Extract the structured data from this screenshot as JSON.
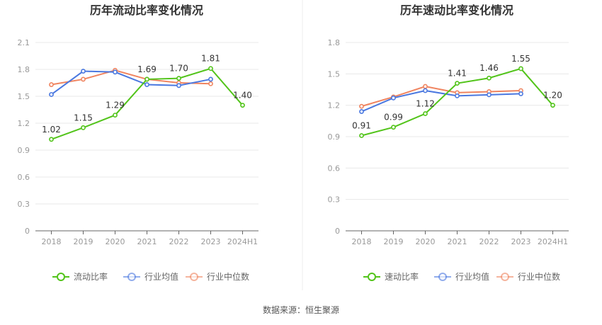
{
  "source_label": "数据来源：恒生聚源",
  "colors": {
    "main": "#52c41a",
    "avg": "#4a78e0",
    "median": "#f0845f",
    "grid": "#e8e8e8",
    "axis": "#666666"
  },
  "chart_data": [
    {
      "type": "line",
      "title": "历年流动比率变化情况",
      "categories": [
        "2018",
        "2019",
        "2020",
        "2021",
        "2022",
        "2023",
        "2024H1"
      ],
      "ylim": [
        0,
        2.1
      ],
      "yticks": [
        "0",
        "0.3",
        "0.6",
        "0.9",
        "1.2",
        "1.5",
        "1.8",
        "2.1"
      ],
      "grid": true,
      "legend_position": "bottom",
      "series": [
        {
          "name": "流动比率",
          "values": [
            1.02,
            1.15,
            1.29,
            1.69,
            1.7,
            1.81,
            1.4
          ],
          "labels": [
            "1.02",
            "1.15",
            "1.29",
            "1.69",
            "1.70",
            "1.81",
            "1.40"
          ]
        },
        {
          "name": "行业均值",
          "values": [
            1.52,
            1.78,
            1.77,
            1.63,
            1.62,
            1.69,
            null
          ]
        },
        {
          "name": "行业中位数",
          "values": [
            1.63,
            1.69,
            1.79,
            1.69,
            1.65,
            1.64,
            null
          ]
        }
      ]
    },
    {
      "type": "line",
      "title": "历年速动比率变化情况",
      "categories": [
        "2018",
        "2019",
        "2020",
        "2021",
        "2022",
        "2023",
        "2024H1"
      ],
      "ylim": [
        0,
        1.8
      ],
      "yticks": [
        "0",
        "0.3",
        "0.6",
        "0.9",
        "1.2",
        "1.5",
        "1.8"
      ],
      "grid": true,
      "legend_position": "bottom",
      "series": [
        {
          "name": "速动比率",
          "values": [
            0.91,
            0.99,
            1.12,
            1.41,
            1.46,
            1.55,
            1.2
          ],
          "labels": [
            "0.91",
            "0.99",
            "1.12",
            "1.41",
            "1.46",
            "1.55",
            "1.20"
          ]
        },
        {
          "name": "行业均值",
          "values": [
            1.14,
            1.27,
            1.34,
            1.29,
            1.3,
            1.31,
            null
          ]
        },
        {
          "name": "行业中位数",
          "values": [
            1.19,
            1.28,
            1.38,
            1.32,
            1.33,
            1.34,
            null
          ]
        }
      ]
    }
  ]
}
